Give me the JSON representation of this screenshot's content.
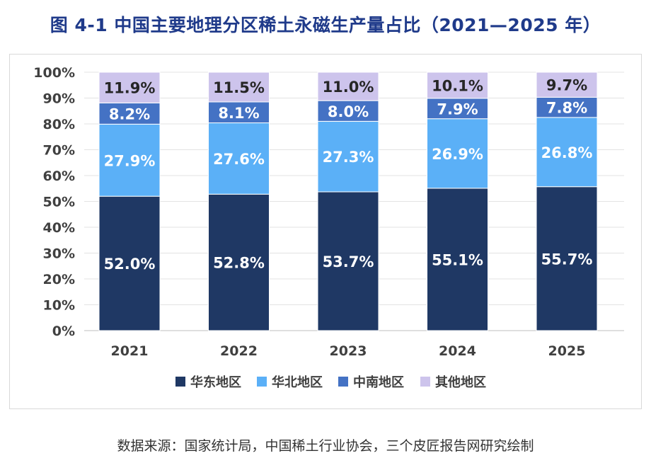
{
  "title": "图 4-1  中国主要地理分区稀土永磁生产量占比（2021—2025 年）",
  "source": "数据来源：国家统计局，中国稀土行业协会，三个皮匠报告网研究绘制",
  "chart_data": {
    "type": "bar",
    "stacked": true,
    "categories": [
      "2021",
      "2022",
      "2023",
      "2024",
      "2025"
    ],
    "series": [
      {
        "name": "华东地区",
        "color": "#1f3864",
        "label_color": "#ffffff",
        "values": [
          52.0,
          52.8,
          53.7,
          55.1,
          55.7
        ],
        "labels": [
          "52.0%",
          "52.8%",
          "53.7%",
          "55.1%",
          "55.7%"
        ]
      },
      {
        "name": "华北地区",
        "color": "#5bb0f7",
        "label_color": "#ffffff",
        "values": [
          27.9,
          27.6,
          27.3,
          26.9,
          26.8
        ],
        "labels": [
          "27.9%",
          "27.6%",
          "27.3%",
          "26.9%",
          "26.8%"
        ]
      },
      {
        "name": "中南地区",
        "color": "#4472c4",
        "label_color": "#ffffff",
        "values": [
          8.2,
          8.1,
          8.0,
          7.9,
          7.8
        ],
        "labels": [
          "8.2%",
          "8.1%",
          "8.0%",
          "7.9%",
          "7.8%"
        ]
      },
      {
        "name": "其他地区",
        "color": "#cdc4ec",
        "label_color": "#262626",
        "values": [
          11.9,
          11.5,
          11.0,
          10.1,
          9.7
        ],
        "labels": [
          "11.9%",
          "11.5%",
          "11.0%",
          "10.1%",
          "9.7%"
        ]
      }
    ],
    "yticks": [
      "0%",
      "10%",
      "20%",
      "30%",
      "40%",
      "50%",
      "60%",
      "70%",
      "80%",
      "90%",
      "100%"
    ],
    "ylim": [
      0,
      100
    ],
    "grid": true,
    "legend_position": "bottom"
  }
}
